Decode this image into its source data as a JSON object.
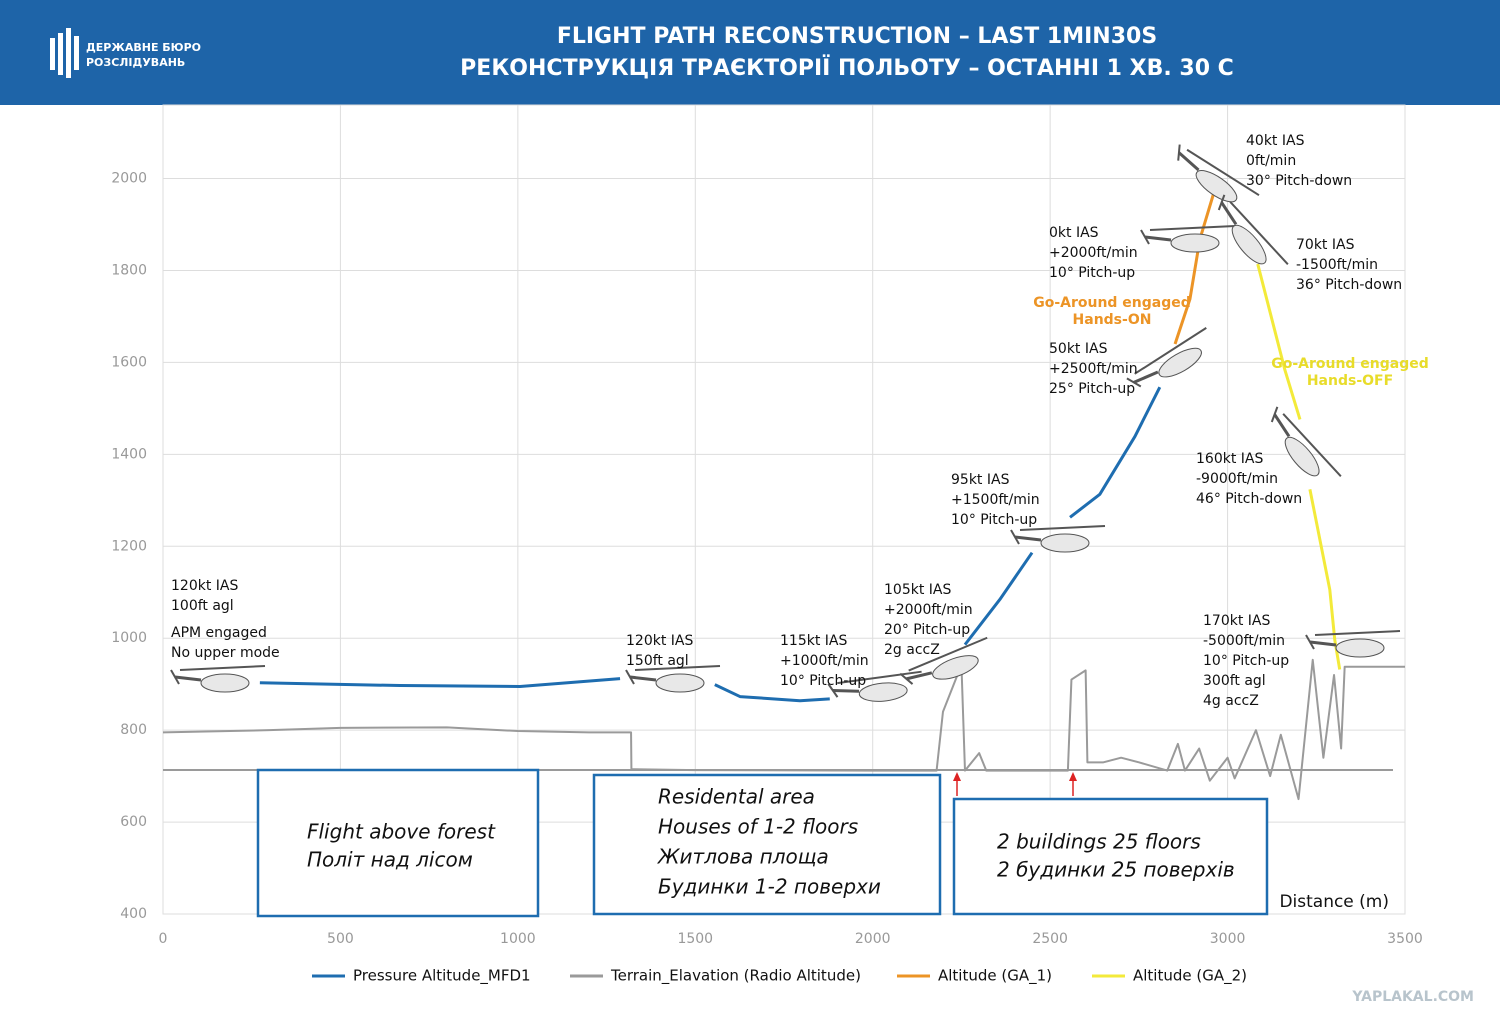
{
  "header": {
    "logo_text": [
      "ДЕРЖАВНЕ БЮРО",
      "РОЗСЛІДУВАНЬ"
    ],
    "title": [
      "FLIGHT PATH RECONSTRUCTION – LAST 1MIN30S",
      "РЕКОНСТРУКЦІЯ ТРАЄКТОРІЇ ПОЛЬОТУ – ОСТАННІ 1 ХВ. 30 С"
    ]
  },
  "chart_data": {
    "type": "line",
    "x_label": "Distance (m)",
    "xlim": [
      0,
      3500
    ],
    "xticks": [
      0,
      500,
      1000,
      1500,
      2000,
      2500,
      3000,
      3500
    ],
    "ylim": [
      400,
      2160
    ],
    "yticks": [
      400,
      600,
      800,
      1000,
      1200,
      1400,
      1600,
      1800,
      2000
    ],
    "grid": true,
    "legend": "bottom",
    "series": [
      {
        "name": "Pressure Altitude_MFD1",
        "color": "#1e6db0",
        "x": [
          273,
          668,
          1006,
          1288,
          1420,
          1555,
          1626,
          1795,
          1879,
          2070,
          2260,
          2358,
          2449,
          2500,
          2556,
          2640,
          2739,
          2809
        ],
        "values": [
          903,
          897,
          895,
          912,
          null,
          899,
          873,
          864,
          868,
          null,
          986,
          1084,
          1186,
          null,
          1263,
          1313,
          1439,
          1546
        ]
      },
      {
        "name": "Terrain_Elavation (Radio Altitude)",
        "color": "#9a9a9a",
        "x": [
          0,
          300,
          500,
          800,
          1000,
          1200,
          1319,
          1320,
          1500,
          2000,
          2180,
          2198,
          2250,
          2260,
          2300,
          2320,
          2550,
          2560,
          2600,
          2605,
          2650,
          2700,
          2750,
          2830,
          2860,
          2880,
          2920,
          2950,
          3000,
          3020,
          3080,
          3120,
          3150,
          3200,
          3240,
          3270,
          3300,
          3320,
          3330,
          3500
        ],
        "values": [
          795,
          800,
          805,
          806,
          798,
          795,
          795,
          715,
          713,
          712,
          712,
          840,
          942,
          712,
          750,
          712,
          712,
          910,
          930,
          730,
          730,
          740,
          730,
          712,
          770,
          712,
          760,
          690,
          740,
          695,
          800,
          700,
          790,
          650,
          953,
          740,
          920,
          760,
          938,
          938
        ]
      },
      {
        "name": "Altitude (GA_1)",
        "color": "#ec9426",
        "x": [
          2852,
          2894,
          2922,
          2964
        ],
        "values": [
          1640,
          1738,
          1868,
          1976
        ]
      },
      {
        "name": "Altitude (GA_2)",
        "color": "#f3ea3a",
        "x": [
          3085,
          3161,
          3204,
          3218,
          3232,
          3288,
          3302,
          3316
        ],
        "values": [
          1814,
          1585,
          1476,
          null,
          1324,
          1106,
          997,
          932
        ]
      }
    ],
    "annotations": [
      {
        "lines": [
          "120kt IAS",
          "100ft agl"
        ],
        "color": "#111111"
      },
      {
        "lines": [
          "APM engaged",
          "No upper mode"
        ],
        "color": "#111111"
      },
      {
        "lines": [
          "120kt IAS",
          "150ft agl"
        ],
        "color": "#111111"
      },
      {
        "lines": [
          "115kt IAS",
          "+1000ft/min",
          "10° Pitch-up"
        ],
        "color": "#111111"
      },
      {
        "lines": [
          "105kt IAS",
          "+2000ft/min",
          "20° Pitch-up",
          "2g accZ"
        ],
        "color": "#111111"
      },
      {
        "lines": [
          "95kt IAS",
          "+1500ft/min",
          "10° Pitch-up"
        ],
        "color": "#111111"
      },
      {
        "lines": [
          "50kt IAS",
          "+2500ft/min",
          "25° Pitch-up"
        ],
        "color": "#111111"
      },
      {
        "lines": [
          "0kt IAS",
          "+2000ft/min",
          "10° Pitch-up"
        ],
        "color": "#111111"
      },
      {
        "lines": [
          "40kt IAS",
          "0ft/min",
          "30° Pitch-down"
        ],
        "color": "#111111"
      },
      {
        "lines": [
          "70kt IAS",
          "-1500ft/min",
          "36° Pitch-down"
        ],
        "color": "#111111"
      },
      {
        "lines": [
          "160kt IAS",
          "-9000ft/min",
          "46° Pitch-down"
        ],
        "color": "#111111"
      },
      {
        "lines": [
          "170kt IAS",
          "-5000ft/min",
          "10° Pitch-up",
          "300ft agl",
          "4g accZ"
        ],
        "color": "#111111"
      },
      {
        "lines": [
          "Go-Around engaged",
          "Hands-ON"
        ],
        "color": "#ec9426"
      },
      {
        "lines": [
          "Go-Around engaged",
          "Hands-OFF"
        ],
        "color": "#e8dc2a"
      }
    ],
    "region_labels": [
      {
        "lines": [
          "Flight above forest",
          "Політ над лісом"
        ]
      },
      {
        "lines": [
          "Residental area",
          "Houses of 1-2 floors",
          "Житлова площа",
          "Будинки 1-2 поверхи"
        ]
      },
      {
        "lines": [
          "2 buildings 25 floors",
          "2 будинки 25 поверхів"
        ]
      }
    ]
  },
  "watermark": "YAPLAKAL.COM"
}
